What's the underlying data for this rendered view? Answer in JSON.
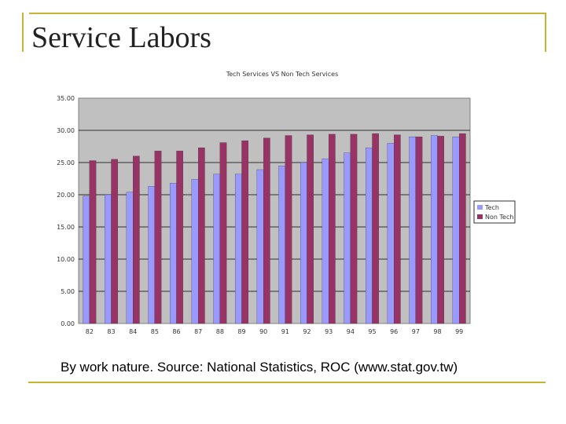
{
  "slide": {
    "title": "Service Labors",
    "caption": "By work nature. Source: National Statistics, ROC (www.stat.gov.tw)"
  },
  "chart_data": {
    "type": "bar",
    "title": "Tech Services VS Non Tech Services",
    "xlabel": "",
    "ylabel": "",
    "categories": [
      "82",
      "83",
      "84",
      "85",
      "86",
      "87",
      "88",
      "89",
      "90",
      "91",
      "92",
      "93",
      "94",
      "95",
      "96",
      "97",
      "98",
      "99"
    ],
    "series": [
      {
        "name": "Tech",
        "color": "#9999ff",
        "values": [
          19.8,
          20.0,
          20.4,
          21.3,
          21.8,
          22.4,
          23.2,
          23.2,
          23.9,
          24.5,
          25.0,
          25.6,
          26.5,
          27.3,
          28.0,
          29.0,
          29.2,
          29.0
        ]
      },
      {
        "name": "Non Tech",
        "color": "#993366",
        "values": [
          25.3,
          25.5,
          26.0,
          26.8,
          26.8,
          27.3,
          28.1,
          28.4,
          28.8,
          29.2,
          29.3,
          29.4,
          29.4,
          29.5,
          29.3,
          29.0,
          29.1,
          29.5
        ]
      }
    ],
    "y_ticks": [
      "0.00",
      "5.00",
      "10.00",
      "15.00",
      "20.00",
      "25.00",
      "30.00",
      "35.00"
    ],
    "ylim": [
      0,
      35
    ],
    "grid": true,
    "legend": "right",
    "plot_background": "#c0c0c0"
  }
}
